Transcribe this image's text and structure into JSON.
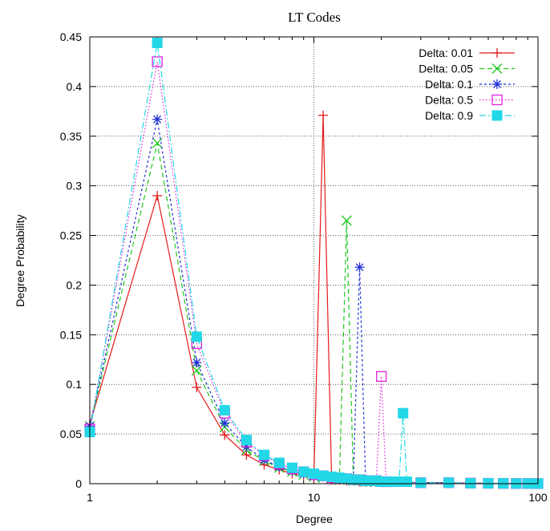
{
  "chart_data": {
    "type": "line",
    "title": "LT Codes",
    "xlabel": "Degree",
    "ylabel": "Degree Probability",
    "x_scale": "log",
    "xlim": [
      1,
      100
    ],
    "ylim": [
      0,
      0.45
    ],
    "x_ticks": [
      1,
      10,
      100
    ],
    "x_tick_labels": [
      "1",
      "10",
      "100"
    ],
    "y_ticks": [
      0,
      0.05,
      0.1,
      0.15,
      0.2,
      0.25,
      0.3,
      0.35,
      0.4,
      0.45
    ],
    "y_tick_labels": [
      "0",
      "0.05",
      "0.1",
      "0.15",
      "0.2",
      "0.25",
      "0.3",
      "0.35",
      "0.4",
      "0.45"
    ],
    "grid": true,
    "legend_position": "top-right",
    "series": [
      {
        "name": "Delta: 0.01",
        "color": "#e41a1c",
        "line": "solid",
        "marker": "plus",
        "x": [
          1,
          2,
          3,
          4,
          5,
          6,
          7,
          8,
          9,
          10,
          11,
          12,
          13,
          14,
          15,
          16,
          17,
          18,
          19,
          20,
          30,
          40,
          50,
          60,
          70,
          80,
          90,
          100
        ],
        "y": [
          0.06,
          0.29,
          0.097,
          0.049,
          0.029,
          0.019,
          0.014,
          0.01,
          0.008,
          0.006,
          0.371,
          0.004,
          0.004,
          0.003,
          0.003,
          0.002,
          0.002,
          0.002,
          0.002,
          0.002,
          0.001,
          0.001,
          0.0005,
          0.0004,
          0.0003,
          0.0002,
          0.0002,
          0.0001
        ]
      },
      {
        "name": "Delta: 0.05",
        "color": "#1ec81e",
        "line": "dashed",
        "marker": "cross",
        "x": [
          1,
          2,
          3,
          4,
          5,
          6,
          7,
          8,
          9,
          10,
          11,
          12,
          13,
          14,
          15,
          16,
          17,
          18,
          19,
          20,
          30,
          40,
          50,
          60,
          70,
          80,
          90,
          100
        ],
        "y": [
          0.058,
          0.343,
          0.114,
          0.057,
          0.034,
          0.023,
          0.016,
          0.012,
          0.009,
          0.007,
          0.006,
          0.005,
          0.004,
          0.265,
          0.003,
          0.003,
          0.002,
          0.002,
          0.002,
          0.002,
          0.001,
          0.001,
          0.0005,
          0.0004,
          0.0003,
          0.0002,
          0.0002,
          0.0001
        ]
      },
      {
        "name": "Delta: 0.1",
        "color": "#1f2ed6",
        "line": "dotted-dense",
        "marker": "star",
        "x": [
          1,
          2,
          3,
          4,
          5,
          6,
          7,
          8,
          9,
          10,
          11,
          12,
          13,
          14,
          15,
          16,
          17,
          18,
          19,
          20,
          30,
          40,
          50,
          60,
          70,
          80,
          90,
          100
        ],
        "y": [
          0.058,
          0.367,
          0.122,
          0.061,
          0.037,
          0.024,
          0.017,
          0.013,
          0.01,
          0.008,
          0.007,
          0.006,
          0.005,
          0.004,
          0.004,
          0.218,
          0.003,
          0.002,
          0.002,
          0.002,
          0.001,
          0.001,
          0.0005,
          0.0004,
          0.0003,
          0.0002,
          0.0002,
          0.0001
        ]
      },
      {
        "name": "Delta: 0.5",
        "color": "#e020e0",
        "line": "dotted",
        "marker": "open-square",
        "x": [
          1,
          2,
          3,
          4,
          5,
          6,
          7,
          8,
          9,
          10,
          11,
          12,
          13,
          14,
          15,
          16,
          17,
          18,
          19,
          20,
          21,
          30,
          40,
          50,
          60,
          70,
          80,
          90,
          100
        ],
        "y": [
          0.055,
          0.425,
          0.141,
          0.071,
          0.042,
          0.028,
          0.02,
          0.015,
          0.012,
          0.009,
          0.008,
          0.006,
          0.005,
          0.005,
          0.004,
          0.004,
          0.003,
          0.003,
          0.003,
          0.108,
          0.002,
          0.001,
          0.001,
          0.0005,
          0.0004,
          0.0003,
          0.0002,
          0.0002,
          0.0001
        ]
      },
      {
        "name": "Delta: 0.9",
        "color": "#22d8e6",
        "line": "dash-dot",
        "marker": "filled-square",
        "x": [
          1,
          2,
          3,
          4,
          5,
          6,
          7,
          8,
          9,
          10,
          11,
          12,
          13,
          14,
          15,
          16,
          17,
          18,
          19,
          20,
          21,
          22,
          23,
          24,
          25,
          26,
          30,
          40,
          50,
          60,
          70,
          80,
          90,
          100
        ],
        "y": [
          0.052,
          0.444,
          0.148,
          0.074,
          0.044,
          0.029,
          0.021,
          0.016,
          0.012,
          0.01,
          0.008,
          0.007,
          0.006,
          0.005,
          0.004,
          0.004,
          0.003,
          0.003,
          0.003,
          0.002,
          0.002,
          0.002,
          0.002,
          0.002,
          0.071,
          0.002,
          0.001,
          0.001,
          0.0005,
          0.0004,
          0.0003,
          0.0002,
          0.0002,
          0.0001
        ]
      }
    ]
  }
}
